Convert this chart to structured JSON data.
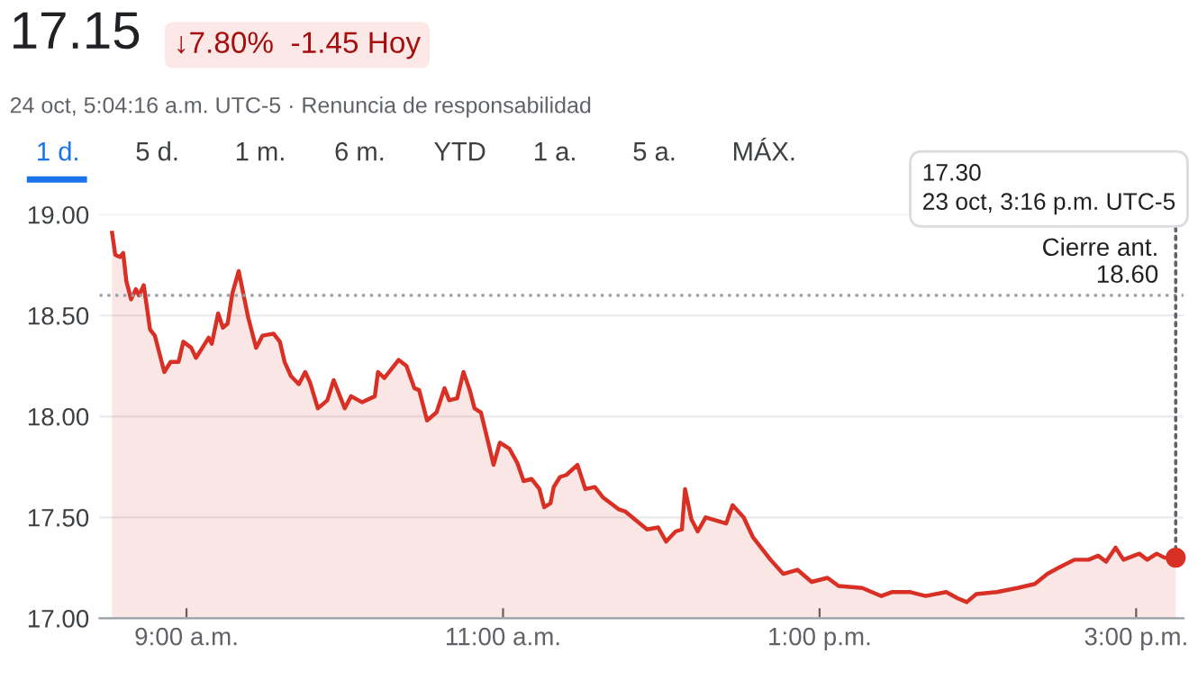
{
  "chart_data": {
    "type": "area",
    "title": "17.15",
    "subtitle": "↓7.80%  -1.45 Hoy",
    "annotations": [
      "24 oct, 5:04:16 a.m. UTC-5 · Renuncia de responsabilidad",
      "1 d.",
      "5 d.",
      "1 m.",
      "6 m.",
      "YTD",
      "1 a.",
      "5 a.",
      "MÁX.",
      {
        "text": "17.30\n23 oct, 3:16 p.m. UTC-5",
        "x": 15.25,
        "y": 17.3
      }
    ],
    "x": [
      8.53,
      8.55,
      8.58,
      8.6,
      8.62,
      8.65,
      8.68,
      8.7,
      8.73,
      8.77,
      8.8,
      8.86,
      8.9,
      8.95,
      8.98,
      9.03,
      9.06,
      9.1,
      9.14,
      9.16,
      9.2,
      9.23,
      9.26,
      9.29,
      9.33,
      9.39,
      9.44,
      9.48,
      9.55,
      9.59,
      9.62,
      9.66,
      9.71,
      9.75,
      9.78,
      9.83,
      9.89,
      9.93,
      10.0,
      10.04,
      10.11,
      10.19,
      10.21,
      10.25,
      10.31,
      10.34,
      10.39,
      10.44,
      10.47,
      10.52,
      10.58,
      10.63,
      10.66,
      10.71,
      10.75,
      10.79,
      10.82,
      10.86,
      10.91,
      10.94,
      10.98,
      11.04,
      11.09,
      11.13,
      11.18,
      11.23,
      11.26,
      11.3,
      11.32,
      11.36,
      11.4,
      11.47,
      11.52,
      11.58,
      11.63,
      11.73,
      11.77,
      11.91,
      11.98,
      12.03,
      12.09,
      12.13,
      12.15,
      12.19,
      12.23,
      12.28,
      12.41,
      12.45,
      12.52,
      12.58,
      12.69,
      12.77,
      12.86,
      12.95,
      13.05,
      13.12,
      13.27,
      13.39,
      13.46,
      13.57,
      13.67,
      13.8,
      13.87,
      13.93,
      13.99,
      14.12,
      14.25,
      14.36,
      14.44,
      14.51,
      14.61,
      14.7,
      14.76,
      14.81,
      14.87,
      14.92,
      15.02,
      15.07,
      15.13,
      15.18,
      15.25
    ],
    "series": [
      {
        "color": "#d93025",
        "values": [
          18.91,
          18.8,
          18.79,
          18.81,
          18.67,
          18.58,
          18.63,
          18.6,
          18.65,
          18.43,
          18.4,
          18.22,
          18.27,
          18.27,
          18.37,
          18.34,
          18.29,
          18.34,
          18.39,
          18.36,
          18.51,
          18.44,
          18.46,
          18.61,
          18.72,
          18.49,
          18.34,
          18.4,
          18.41,
          18.37,
          18.27,
          18.2,
          18.16,
          18.22,
          18.17,
          18.04,
          18.08,
          18.18,
          18.04,
          18.1,
          18.07,
          18.1,
          18.22,
          18.19,
          18.25,
          18.28,
          18.25,
          18.14,
          18.13,
          17.98,
          18.02,
          18.14,
          18.08,
          18.09,
          18.22,
          18.13,
          18.04,
          18.02,
          17.86,
          17.76,
          17.87,
          17.84,
          17.77,
          17.68,
          17.69,
          17.64,
          17.55,
          17.57,
          17.65,
          17.7,
          17.71,
          17.76,
          17.64,
          17.65,
          17.6,
          17.54,
          17.53,
          17.44,
          17.45,
          17.38,
          17.43,
          17.44,
          17.64,
          17.49,
          17.43,
          17.5,
          17.47,
          17.56,
          17.5,
          17.4,
          17.29,
          17.22,
          17.24,
          17.18,
          17.2,
          17.16,
          17.15,
          17.11,
          17.13,
          17.13,
          17.11,
          17.13,
          17.1,
          17.08,
          17.12,
          17.13,
          17.15,
          17.17,
          17.22,
          17.25,
          17.29,
          17.29,
          17.31,
          17.28,
          17.35,
          17.29,
          17.32,
          17.29,
          17.32,
          17.3,
          17.3
        ]
      }
    ],
    "xlim": [
      8.45,
      15.3
    ],
    "xticks": [
      {
        "value": 9,
        "label": "9:00 a.m."
      },
      {
        "value": 11,
        "label": "11:00 a.m."
      },
      {
        "value": 13,
        "label": "1:00 p.m."
      },
      {
        "value": 15,
        "label": "3:00 p.m."
      }
    ],
    "ylim": [
      17,
      19
    ],
    "yticks": [
      {
        "value": 17,
        "label": "17.00"
      },
      {
        "value": 17.5,
        "label": "17.50"
      },
      {
        "value": 18,
        "label": "18.00"
      },
      {
        "value": 18.5,
        "label": "18.50"
      },
      {
        "value": 19,
        "label": "19.00"
      }
    ],
    "ref_lines": [
      {
        "axis": "y",
        "value": 18.6,
        "label": "Cierre ant.\n18.60",
        "color": "#9aa0a6",
        "line_style": "dotted"
      }
    ],
    "grid": "y"
  }
}
